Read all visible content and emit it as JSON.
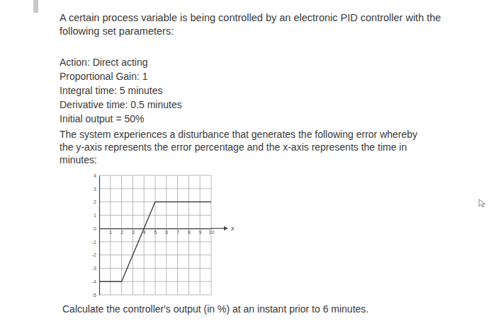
{
  "document": {
    "intro": [
      "A certain process variable is being controlled by an electronic PID controller with the",
      "following set parameters:"
    ],
    "parameters": [
      "Action: Direct acting",
      "Proportional Gain: 1",
      "Integral time: 5 minutes",
      "Derivative time: 0.5 minutes",
      "Initial output = 50%"
    ],
    "description": [
      "The system experiences a disturbance that generates the following error whereby",
      "the y-axis represents the error percentage and the x-axis represents the time in",
      "minutes:"
    ],
    "question": "Calculate the controller's output (in %) at an instant prior to 6 minutes."
  },
  "chart_data": {
    "type": "line",
    "xlabel": "x",
    "x": [
      0,
      2,
      5,
      10
    ],
    "values": [
      -4,
      -4,
      2,
      2
    ],
    "color": "#444444",
    "xlim": [
      0,
      10
    ],
    "ylim": [
      -5,
      4
    ],
    "xticks": [
      1,
      2,
      3,
      4,
      5,
      6,
      7,
      8,
      9,
      10
    ],
    "yticks": [
      -5,
      -4,
      -3,
      -2,
      -1,
      0,
      1,
      2,
      3,
      4
    ],
    "grid": true
  }
}
